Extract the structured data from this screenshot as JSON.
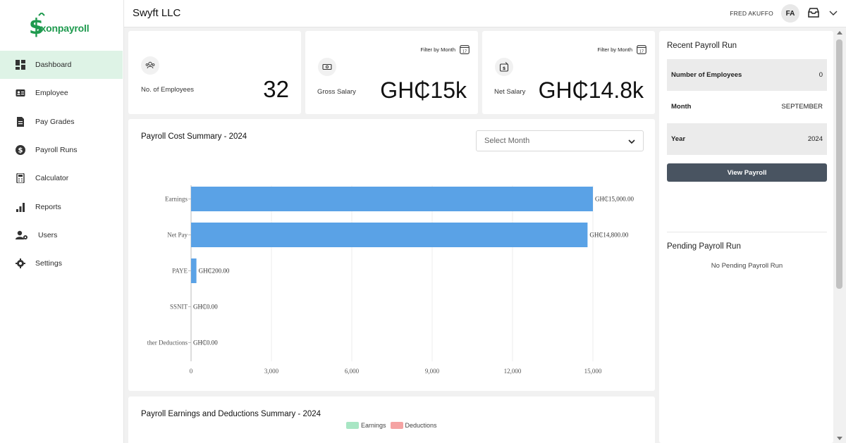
{
  "brand": {
    "name": "axonpayroll"
  },
  "sidebar": {
    "items": [
      {
        "label": "Dashboard",
        "icon": "dashboard-icon",
        "active": true
      },
      {
        "label": "Employee",
        "icon": "id-card-icon"
      },
      {
        "label": "Pay Grades",
        "icon": "document-icon"
      },
      {
        "label": "Payroll Runs",
        "icon": "dollar-icon"
      },
      {
        "label": "Calculator",
        "icon": "calculator-icon"
      },
      {
        "label": "Reports",
        "icon": "bar-chart-icon"
      },
      {
        "label": "Users",
        "icon": "users-gear-icon"
      },
      {
        "label": "Settings",
        "icon": "gear-icon"
      }
    ]
  },
  "header": {
    "company": "Swyft LLC",
    "user_name": "FRED AKUFFO",
    "avatar_initials": "FA"
  },
  "stats": {
    "employees": {
      "label": "No. of Employees",
      "value": "32"
    },
    "gross": {
      "label": "Gross Salary",
      "value": "GH₵15k",
      "filter": "Filter by Month"
    },
    "net": {
      "label": "Net Salary",
      "value": "GH₵14.8k",
      "filter": "Filter by Month"
    }
  },
  "cost_summary": {
    "title": "Payroll Cost Summary - 2024",
    "select_placeholder": "Select Month"
  },
  "chart_data": {
    "type": "bar",
    "orientation": "horizontal",
    "title": "Payroll Cost Summary - 2024",
    "categories": [
      "Earnings",
      "Net Pay",
      "PAYE",
      "SSNIT",
      "ther Deductions"
    ],
    "values": [
      15000,
      14800,
      200,
      0,
      0
    ],
    "data_labels": [
      "GH₵15,000.00",
      "GH₵14,800.00",
      "GH₵200.00",
      "GH₵0.00",
      "GH₵0.00"
    ],
    "xlim": [
      0,
      15000
    ],
    "xticks": [
      "0",
      "3,000",
      "6,000",
      "9,000",
      "12,000",
      "15,000"
    ],
    "bar_color": "#5aa2e6",
    "grid": true
  },
  "earnings_summary": {
    "title": "Payroll Earnings and Deductions Summary - 2024",
    "legend": [
      {
        "label": "Earnings",
        "color": "#a8e6c4"
      },
      {
        "label": "Deductions",
        "color": "#f5a3a3"
      }
    ]
  },
  "recent_run": {
    "title": "Recent Payroll Run",
    "rows": [
      {
        "key": "Number of Employees",
        "value": "0"
      },
      {
        "key": "Month",
        "value": "SEPTEMBER"
      },
      {
        "key": "Year",
        "value": "2024"
      }
    ],
    "button": "View Payroll"
  },
  "pending_run": {
    "title": "Pending Payroll Run",
    "empty": "No Pending Payroll Run"
  }
}
